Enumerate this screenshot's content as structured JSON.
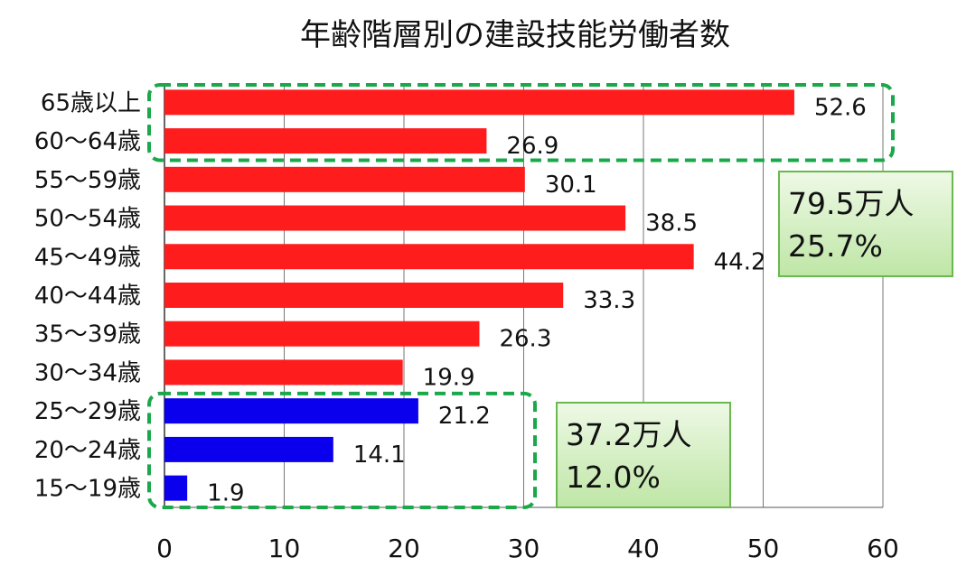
{
  "chart_data": {
    "type": "bar",
    "orientation": "horizontal",
    "title": "年齢階層別の建設技能労働者数",
    "categories": [
      "65歳以上",
      "60～64歳",
      "55～59歳",
      "50～54歳",
      "45～49歳",
      "40～44歳",
      "35～39歳",
      "30～34歳",
      "25～29歳",
      "20～24歳",
      "15～19歳"
    ],
    "values": [
      52.6,
      26.9,
      30.1,
      38.5,
      44.2,
      33.3,
      26.3,
      19.9,
      21.2,
      14.1,
      1.9
    ],
    "value_labels": [
      "52.6",
      "26.9",
      "30.1",
      "38.5",
      "44.2",
      "33.3",
      "26.3",
      "19.9",
      "21.2",
      "14.1",
      "1.9"
    ],
    "bar_colors": [
      "#ff1c1c",
      "#ff1c1c",
      "#ff1c1c",
      "#ff1c1c",
      "#ff1c1c",
      "#ff1c1c",
      "#ff1c1c",
      "#ff1c1c",
      "#0a00ee",
      "#0a00ee",
      "#0a00ee"
    ],
    "xlim": [
      0,
      60
    ],
    "xticks": [
      0,
      10,
      20,
      30,
      40,
      50,
      60
    ],
    "xtick_labels": [
      "0",
      "10",
      "20",
      "30",
      "40",
      "50",
      "60"
    ],
    "grid": "vertical",
    "colors": {
      "older": "#ff1c1c",
      "younger": "#0a00ee",
      "highlight_border": "#1aa84a",
      "callout_fill": "#d4f0c0",
      "callout_border": "#69b94e"
    },
    "annotations": [
      {
        "group": [
          "65歳以上",
          "60～64歳"
        ],
        "line1": "79.5万人",
        "line2": "25.7%"
      },
      {
        "group": [
          "25～29歳",
          "20～24歳",
          "15～19歳"
        ],
        "line1": "37.2万人",
        "line2": "12.0%"
      }
    ]
  }
}
